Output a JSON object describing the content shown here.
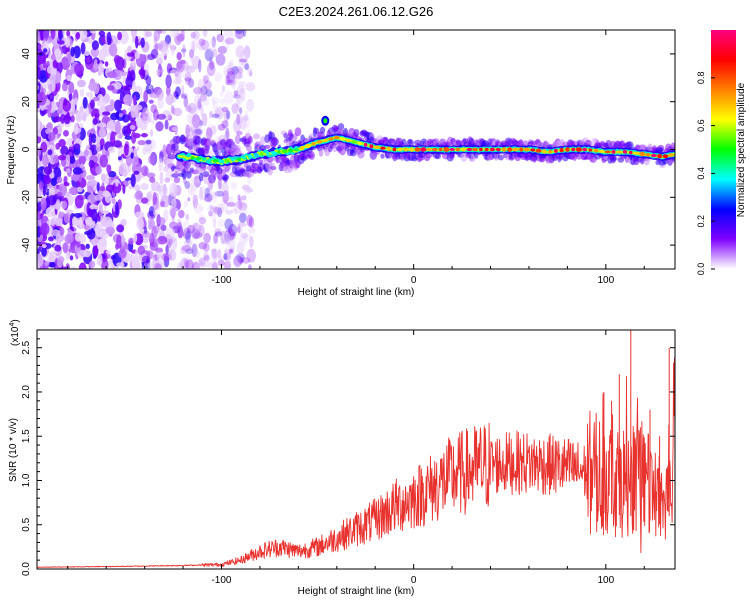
{
  "title": "C2E3.2024.261.06.12.G26",
  "colors": {
    "snr_line": "#e8322e",
    "axis": "#000000",
    "background": "#ffffff"
  },
  "chart_data": [
    {
      "type": "heatmap",
      "name": "spectrogram",
      "xlabel": "Height of straight line (km)",
      "ylabel": "Frequency (Hz)",
      "xlim": [
        -196,
        136
      ],
      "ylim": [
        -50,
        50
      ],
      "x_ticks": [
        -100,
        0,
        100
      ],
      "y_ticks": [
        -40,
        -20,
        0,
        20,
        40
      ],
      "x_tick_labels": [
        "-100",
        "0",
        "100"
      ],
      "y_tick_labels": [
        "-40",
        "-20",
        "0",
        "20",
        "40"
      ],
      "ridge": {
        "x": [
          -120,
          -110,
          -100,
          -90,
          -80,
          -70,
          -60,
          -50,
          -45,
          -40,
          -35,
          -30,
          -20,
          -10,
          0,
          10,
          20,
          30,
          40,
          50,
          60,
          70,
          80,
          90,
          100,
          110,
          120,
          130,
          136
        ],
        "y": [
          -3,
          -4,
          -5,
          -4,
          -2,
          -1,
          0,
          3,
          4,
          5,
          4,
          3,
          1,
          0,
          0,
          0,
          0,
          0,
          0,
          0,
          0,
          -1,
          0,
          0,
          -1,
          -1,
          -2,
          -3,
          -2
        ]
      },
      "colorbar": {
        "label": "Normalized spectral amplitude",
        "range": [
          0,
          1
        ],
        "ticks": [
          0.0,
          0.2,
          0.4,
          0.6,
          0.8
        ],
        "tick_labels": [
          "0.0",
          "0.2",
          "0.4",
          "0.6",
          "0.8"
        ],
        "colormap": [
          "#ffffff",
          "#8000ff",
          "#0000ff",
          "#00ffff",
          "#00ff00",
          "#ffff00",
          "#ff8000",
          "#ff0000",
          "#ff007f"
        ]
      }
    },
    {
      "type": "line",
      "name": "snr",
      "xlabel": "Height of straight line (km)",
      "ylabel": "SNR (10 * v/v)",
      "multiplier_label": "(x10",
      "multiplier_exp": "4",
      "multiplier_close": ")",
      "xlim": [
        -196,
        136
      ],
      "ylim": [
        0,
        2.7
      ],
      "x_ticks": [
        -100,
        0,
        100
      ],
      "y_ticks": [
        0.0,
        0.5,
        1.0,
        1.5,
        2.0,
        2.5
      ],
      "x_tick_labels": [
        "-100",
        "0",
        "100"
      ],
      "y_tick_labels": [
        "0.0",
        "0.5",
        "1.0",
        "1.5",
        "2.0",
        "2.5"
      ],
      "envelope": {
        "x": [
          -196,
          -150,
          -120,
          -100,
          -90,
          -80,
          -70,
          -60,
          -50,
          -40,
          -30,
          -20,
          -10,
          0,
          10,
          20,
          30,
          40,
          50,
          60,
          70,
          80,
          90,
          100,
          110,
          115,
          120,
          125,
          130,
          133,
          136
        ],
        "y": [
          0.02,
          0.03,
          0.04,
          0.05,
          0.1,
          0.2,
          0.25,
          0.2,
          0.25,
          0.35,
          0.45,
          0.55,
          0.7,
          0.8,
          0.92,
          1.05,
          1.12,
          1.18,
          1.2,
          1.2,
          1.18,
          1.15,
          1.1,
          1.05,
          1.0,
          1.0,
          0.95,
          0.9,
          0.8,
          1.0,
          1.1
        ]
      },
      "spikes": {
        "x": [
          113,
          133,
          107,
          99,
          103,
          123,
          118,
          128
        ],
        "y": [
          2.7,
          2.5,
          2.2,
          2.0,
          1.9,
          1.8,
          1.6,
          1.5
        ]
      }
    }
  ]
}
